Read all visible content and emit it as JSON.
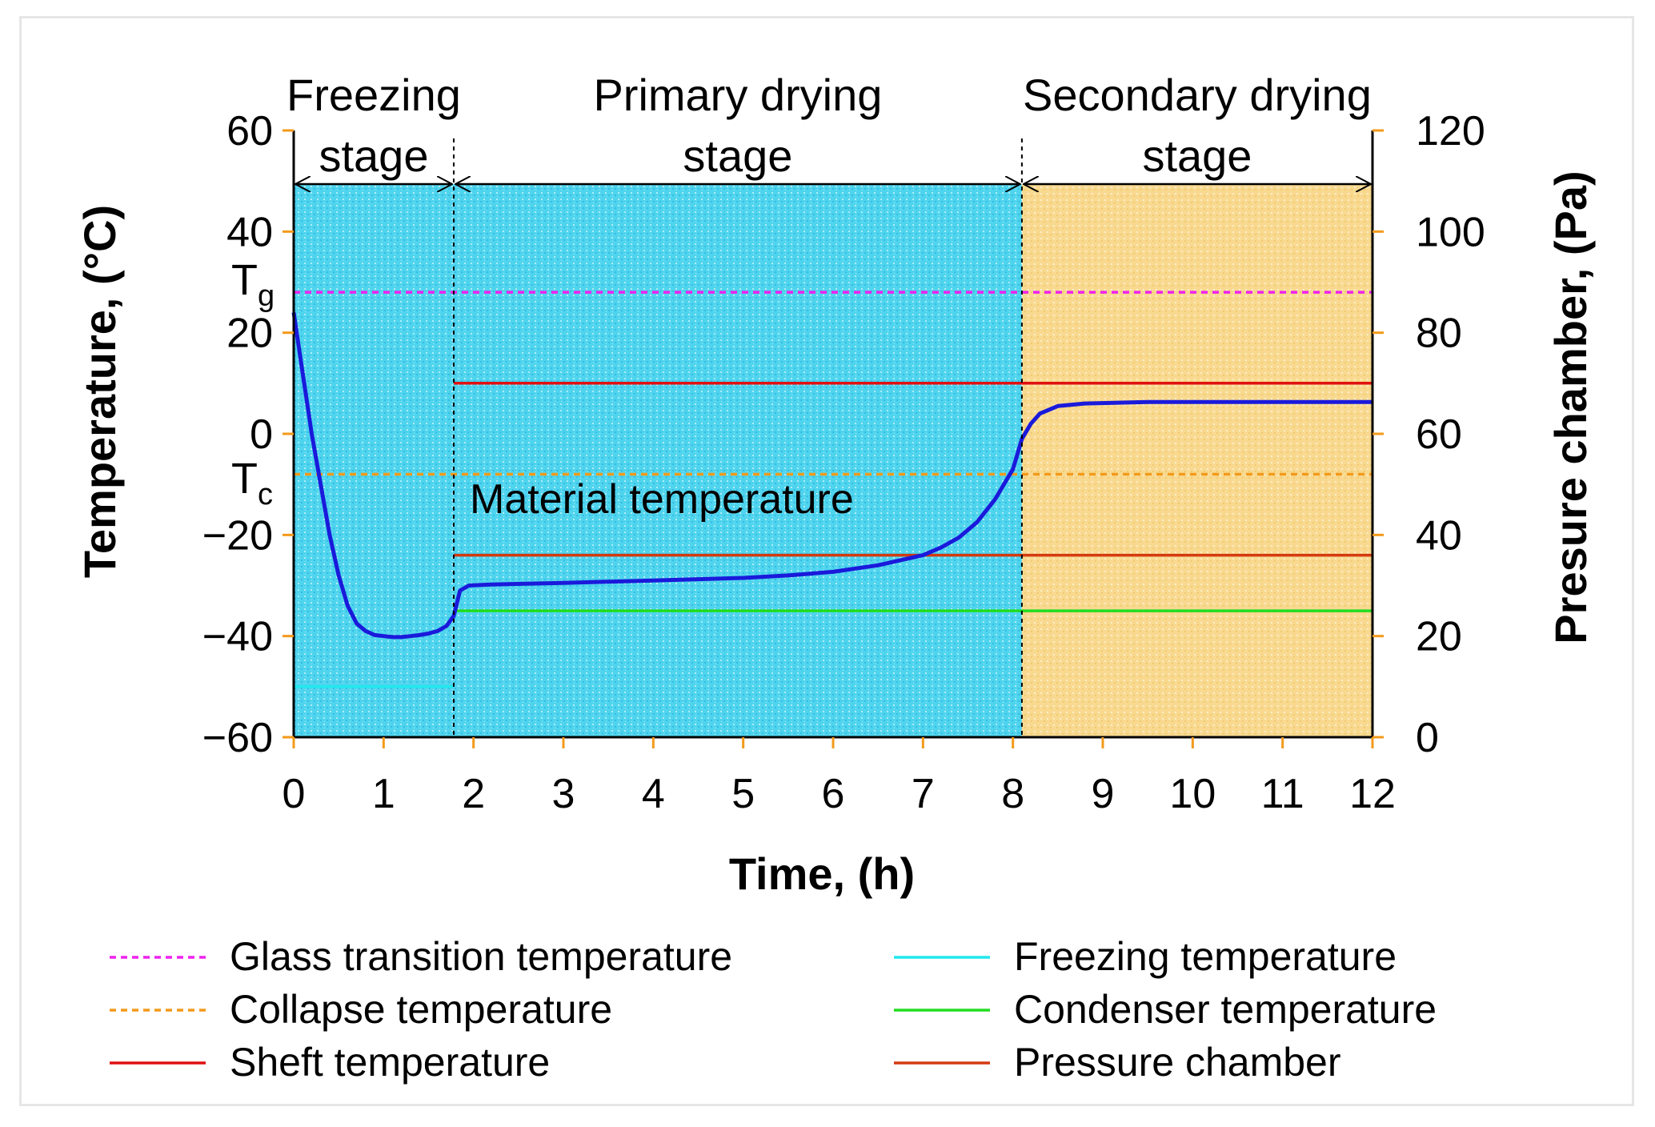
{
  "chart_data": {
    "type": "line",
    "title": "",
    "xlabel": "Time, (h)",
    "ylabel": "Temperature, (°C)",
    "y2label": "Presure chamber, (Pa)",
    "xlim": [
      0,
      12
    ],
    "ylim": [
      -60,
      60
    ],
    "y2lim": [
      0,
      120
    ],
    "xticks": [
      "0",
      "1",
      "2",
      "3",
      "4",
      "5",
      "6",
      "7",
      "8",
      "9",
      "10",
      "11",
      "12"
    ],
    "yticks": [
      "−60",
      "−40",
      "−20",
      "0",
      "20",
      "40",
      "60"
    ],
    "y2ticks": [
      "0",
      "20",
      "40",
      "60",
      "80",
      "100",
      "120"
    ],
    "grid": false,
    "stages": [
      {
        "lines": [
          "Freezing",
          "stage"
        ],
        "start": 0,
        "end": 1.78,
        "color": "#4fd4ee"
      },
      {
        "lines": [
          "Primary drying",
          "stage"
        ],
        "start": 1.78,
        "end": 8.1,
        "color": "#4fd4ee"
      },
      {
        "lines": [
          "Secondary drying",
          "stage"
        ],
        "start": 8.1,
        "end": 12,
        "color": "#f8d98f"
      }
    ],
    "annotations": {
      "material": "Material temperature",
      "tg_main": "T",
      "tg_sub": "g",
      "tc_main": "T",
      "tc_sub": "c"
    },
    "series": [
      {
        "name": "Glass transition temperature",
        "color": "#ee22ee",
        "dash": true,
        "axis": "left",
        "x": [
          0,
          12
        ],
        "y": [
          28,
          28
        ]
      },
      {
        "name": "Collapse temperature",
        "color": "#f39a1a",
        "dash": true,
        "axis": "left",
        "x": [
          0,
          12
        ],
        "y": [
          -8,
          -8
        ]
      },
      {
        "name": "Sheft temperature",
        "color": "#e01010",
        "dash": false,
        "axis": "left",
        "x": [
          1.78,
          12
        ],
        "y": [
          10,
          10
        ]
      },
      {
        "name": "Freezing temperature",
        "color": "#22e8ee",
        "dash": false,
        "axis": "left",
        "x": [
          0,
          1.78
        ],
        "y": [
          -50,
          -50
        ]
      },
      {
        "name": "Condenser temperature",
        "color": "#20dd20",
        "dash": false,
        "axis": "left",
        "x": [
          1.78,
          12
        ],
        "y": [
          -35,
          -35
        ]
      },
      {
        "name": "Pressure chamber",
        "color": "#d43a10",
        "dash": false,
        "axis": "right",
        "x": [
          1.78,
          12
        ],
        "y": [
          36,
          36
        ]
      },
      {
        "name": "Material temperature",
        "color": "#1a1adb",
        "dash": false,
        "axis": "left",
        "legend": false,
        "x": [
          0,
          0.1,
          0.2,
          0.3,
          0.4,
          0.5,
          0.6,
          0.7,
          0.8,
          0.9,
          1.0,
          1.1,
          1.2,
          1.3,
          1.4,
          1.5,
          1.6,
          1.7,
          1.78,
          1.85,
          1.95,
          2.2,
          3,
          4,
          5,
          5.5,
          6,
          6.5,
          7,
          7.2,
          7.4,
          7.6,
          7.8,
          8.0,
          8.1,
          8.2,
          8.3,
          8.5,
          8.8,
          9.5,
          10.5,
          12
        ],
        "y": [
          24,
          12,
          0,
          -10,
          -20,
          -28,
          -34,
          -37.5,
          -39,
          -39.8,
          -40,
          -40.2,
          -40.2,
          -40,
          -39.8,
          -39.5,
          -39,
          -38,
          -36,
          -31,
          -30,
          -29.8,
          -29.5,
          -29,
          -28.5,
          -28,
          -27.3,
          -26,
          -24,
          -22.5,
          -20.5,
          -17.5,
          -13,
          -7,
          -1,
          2,
          4,
          5.5,
          6,
          6.3,
          6.3,
          6.3
        ]
      }
    ]
  }
}
